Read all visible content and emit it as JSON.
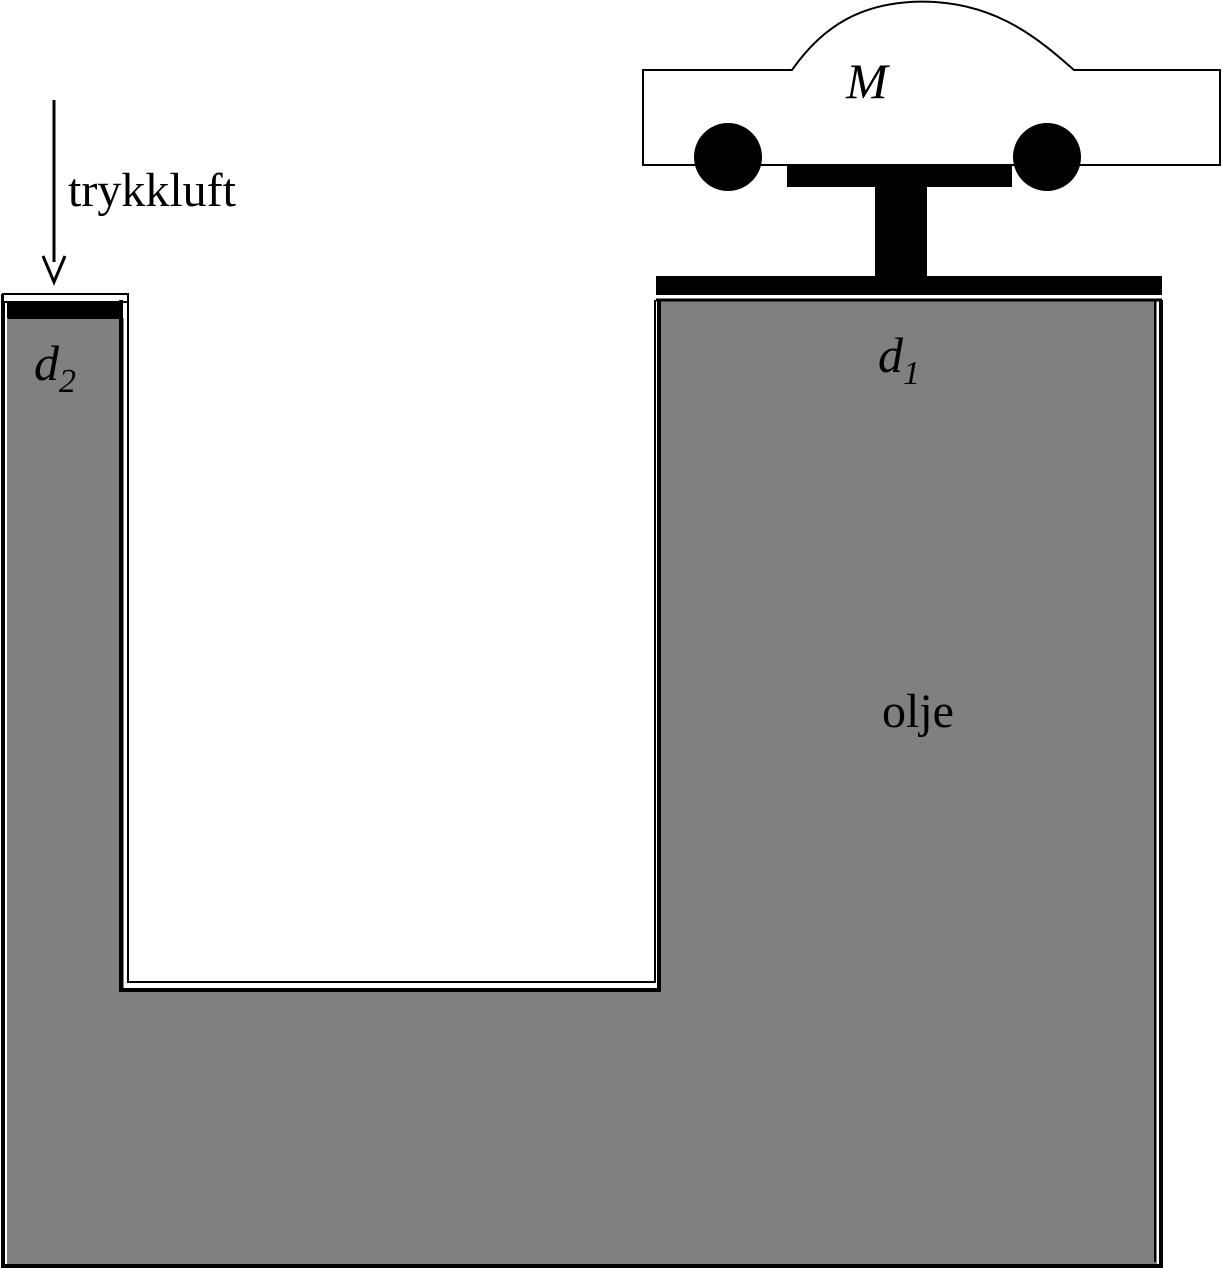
{
  "labels": {
    "compressed_air": "trykkluft",
    "fluid": "olje",
    "mass": "M",
    "large_piston_symbol": "d",
    "large_piston_subscript": "1",
    "small_piston_symbol": "d",
    "small_piston_subscript": "2"
  },
  "colors": {
    "oil": "#808080",
    "outline": "#000000",
    "background": "#ffffff",
    "piston": "#000000"
  }
}
